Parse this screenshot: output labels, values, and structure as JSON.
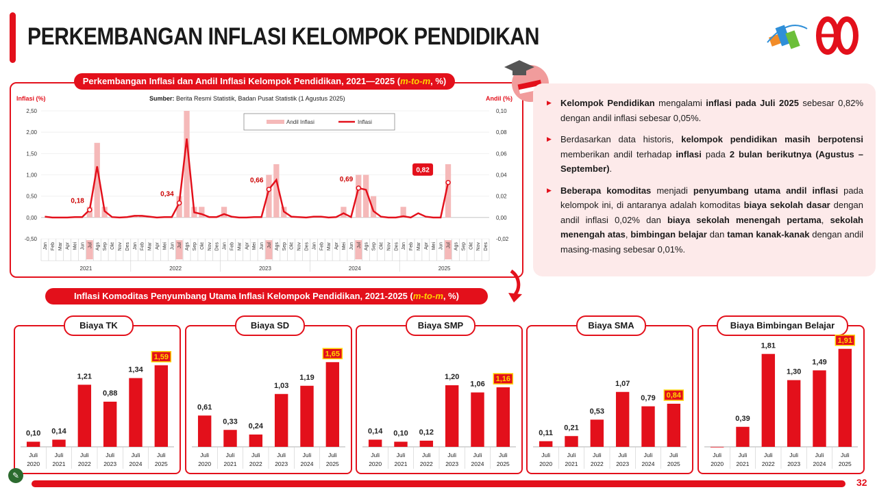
{
  "title": "PERKEMBANGAN INFLASI KELOMPOK PENDIDIKAN",
  "page_number": "32",
  "colors": {
    "accent": "#e3101b",
    "bar_light": "#f5b9b9",
    "panel_bg": "#fdeaea",
    "highlight": "#ffd400"
  },
  "icons": [
    "statistics-logo-icon",
    "80-anniversary-logo-icon",
    "graduation-cap-icon",
    "down-arrow-icon",
    "edit-icon"
  ],
  "top_chart": {
    "title_prefix": "Perkembangan Inflasi dan Andil Inflasi Kelompok Pendidikan, 2021—2025 (",
    "title_em": "m-to-m",
    "title_suffix": ", %)",
    "source_label": "Sumber:",
    "source_text": " Berita Resmi Statistik, Badan Pusat Statistik (1 Agustus 2025)"
  },
  "bottom_section": {
    "title_prefix": "Inflasi Komoditas Penyumbang Utama Inflasi Kelompok Pendidikan, 2021-2025 (",
    "title_em": "m-to-m",
    "title_suffix": ", %)"
  },
  "bullets": [
    [
      {
        "b": true,
        "t": "Kelompok Pendidikan"
      },
      {
        "t": " mengalami "
      },
      {
        "b": true,
        "t": "inflasi pada Juli 2025"
      },
      {
        "t": " sebesar 0,82% dengan andil inflasi sebesar 0,05%."
      }
    ],
    [
      {
        "t": "Berdasarkan data historis, "
      },
      {
        "b": true,
        "t": "kelompok pendidikan masih berpotensi"
      },
      {
        "t": " memberikan andil terhadap "
      },
      {
        "b": true,
        "t": "inflasi"
      },
      {
        "t": " pada "
      },
      {
        "b": true,
        "t": "2 bulan berikutnya (Agustus – September)"
      },
      {
        "t": "."
      }
    ],
    [
      {
        "b": true,
        "t": "Beberapa komoditas"
      },
      {
        "t": " menjadi "
      },
      {
        "b": true,
        "t": "penyumbang utama andil inflasi"
      },
      {
        "t": " pada kelompok ini, di antaranya adalah komoditas "
      },
      {
        "b": true,
        "t": "biaya sekolah dasar"
      },
      {
        "t": " dengan andil inflasi 0,02% dan "
      },
      {
        "b": true,
        "t": "biaya sekolah menengah pertama"
      },
      {
        "t": ", "
      },
      {
        "b": true,
        "t": "sekolah menengah atas"
      },
      {
        "t": ", "
      },
      {
        "b": true,
        "t": "bimbingan belajar"
      },
      {
        "t": " dan "
      },
      {
        "b": true,
        "t": "taman kanak-kanak"
      },
      {
        "t": " dengan andil masing-masing sebesar 0,01%."
      }
    ]
  ],
  "chart_data": [
    {
      "type": "line",
      "title": "Perkembangan Inflasi dan Andil Inflasi Kelompok Pendidikan, 2021—2025 (m-to-m, %)",
      "ylabel": "Inflasi (%)",
      "y2label": "Andil (%)",
      "ylim": [
        -0.5,
        2.5
      ],
      "y2lim": [
        -0.02,
        0.1
      ],
      "yticks": [
        "-0,50",
        "0,00",
        "0,50",
        "1,00",
        "1,50",
        "2,00",
        "2,50"
      ],
      "y2ticks": [
        "-0,02",
        "0,00",
        "0,02",
        "0,04",
        "0,06",
        "0,08",
        "0,10"
      ],
      "months": [
        "Jan",
        "Feb",
        "Mar",
        "Apr",
        "Mei",
        "Jun",
        "Jul",
        "Ags",
        "Sep",
        "Okt",
        "Nov",
        "Des"
      ],
      "years": [
        "2021",
        "2022",
        "2023",
        "2024",
        "2025"
      ],
      "legend": [
        "Andil Inflasi",
        "Inflasi"
      ],
      "legend_position": "top",
      "series": [
        {
          "name": "Inflasi",
          "axis": "left",
          "values": [
            0.02,
            0.0,
            0.0,
            0.0,
            0.01,
            0.01,
            0.18,
            1.2,
            0.15,
            0.01,
            0.0,
            0.01,
            0.04,
            0.04,
            0.02,
            0.0,
            0.01,
            0.01,
            0.34,
            1.85,
            0.12,
            0.08,
            0.01,
            0.01,
            0.08,
            0.02,
            0.0,
            0.0,
            0.01,
            0.01,
            0.66,
            0.88,
            0.14,
            0.02,
            0.01,
            0.0,
            0.02,
            0.02,
            0.0,
            0.01,
            0.1,
            0.01,
            0.69,
            0.65,
            0.15,
            0.02,
            0.0,
            0.0,
            0.03,
            0.0,
            0.1,
            0.02,
            0.0,
            0.0,
            0.82
          ]
        },
        {
          "name": "Andil Inflasi",
          "axis": "right",
          "values": [
            0.0,
            0.0,
            0.0,
            0.0,
            0.0,
            0.0,
            0.01,
            0.07,
            0.01,
            0.0,
            0.0,
            0.0,
            0.002,
            0.002,
            0.0,
            0.0,
            0.0,
            0.0,
            0.02,
            0.1,
            0.01,
            0.01,
            0.0,
            0.0,
            0.01,
            0.0,
            0.0,
            0.0,
            0.0,
            0.0,
            0.04,
            0.05,
            0.01,
            0.0,
            0.0,
            0.0,
            0.0,
            0.0,
            0.0,
            0.0,
            0.01,
            0.0,
            0.04,
            0.04,
            0.02,
            0.0,
            0.0,
            0.0,
            0.01,
            0.0,
            0.0,
            0.0,
            0.0,
            0.0,
            0.05
          ]
        }
      ],
      "annotations": [
        {
          "index": 6,
          "label": "0,18"
        },
        {
          "index": 18,
          "label": "0,34"
        },
        {
          "index": 30,
          "label": "0,66"
        },
        {
          "index": 42,
          "label": "0,69"
        },
        {
          "index": 54,
          "label": "0,82",
          "boxed": true
        }
      ]
    },
    {
      "type": "bar",
      "title": "Biaya TK",
      "categories": [
        "Juli\n2020",
        "Juli\n2021",
        "Juli\n2022",
        "Juli\n2023",
        "Juli\n2024",
        "Juli\n2025"
      ],
      "values": [
        0.1,
        0.14,
        1.21,
        0.88,
        1.34,
        1.59
      ],
      "labels": [
        "0,10",
        "0,14",
        "1,21",
        "0,88",
        "1,34",
        "1,59"
      ],
      "ylim": [
        0,
        2.0
      ]
    },
    {
      "type": "bar",
      "title": "Biaya SD",
      "categories": [
        "Juli\n2020",
        "Juli\n2021",
        "Juli\n2022",
        "Juli\n2023",
        "Juli\n2024",
        "Juli\n2025"
      ],
      "values": [
        0.61,
        0.33,
        0.24,
        1.03,
        1.19,
        1.65
      ],
      "labels": [
        "0,61",
        "0,33",
        "0,24",
        "1,03",
        "1,19",
        "1,65"
      ],
      "ylim": [
        0,
        2.0
      ]
    },
    {
      "type": "bar",
      "title": "Biaya SMP",
      "categories": [
        "Juli\n2020",
        "Juli\n2021",
        "Juli\n2022",
        "Juli\n2023",
        "Juli\n2024",
        "Juli\n2025"
      ],
      "values": [
        0.14,
        0.1,
        0.12,
        1.2,
        1.06,
        1.16
      ],
      "labels": [
        "0,14",
        "0,10",
        "0,12",
        "1,20",
        "1,06",
        "1,16"
      ],
      "ylim": [
        0,
        2.0
      ]
    },
    {
      "type": "bar",
      "title": "Biaya SMA",
      "categories": [
        "Juli\n2020",
        "Juli\n2021",
        "Juli\n2022",
        "Juli\n2023",
        "Juli\n2024",
        "Juli\n2025"
      ],
      "values": [
        0.11,
        0.21,
        0.53,
        1.07,
        0.79,
        0.84
      ],
      "labels": [
        "0,11",
        "0,21",
        "0,53",
        "1,07",
        "0,79",
        "0,84"
      ],
      "ylim": [
        0,
        2.0
      ]
    },
    {
      "type": "bar",
      "title": "Biaya Bimbingan Belajar",
      "categories": [
        "Juli\n2020",
        "Juli\n2021",
        "Juli\n2022",
        "Juli\n2023",
        "Juli\n2024",
        "Juli\n2025"
      ],
      "values": [
        0.0,
        0.39,
        1.81,
        1.3,
        1.49,
        1.91
      ],
      "labels": [
        "",
        "0,39",
        "1,81",
        "1,30",
        "1,49",
        "1,91"
      ],
      "ylim": [
        0,
        2.0
      ]
    }
  ]
}
